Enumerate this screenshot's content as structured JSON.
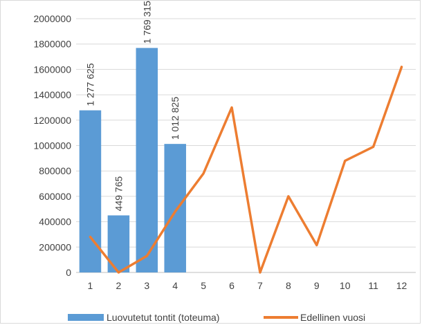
{
  "chart_data": {
    "type": "bar",
    "categories": [
      "1",
      "2",
      "3",
      "4",
      "5",
      "6",
      "7",
      "8",
      "9",
      "10",
      "11",
      "12"
    ],
    "series": [
      {
        "name": "Luovutetut tontit (toteuma)",
        "type": "bar",
        "color": "#5b9bd5",
        "values": [
          1277625,
          449765,
          1769315,
          1012825,
          null,
          null,
          null,
          null,
          null,
          null,
          null,
          null
        ],
        "data_labels": [
          "1 277 625",
          "449 765",
          "1 769 315",
          "1 012 825"
        ]
      },
      {
        "name": "Edellinen vuosi",
        "type": "line",
        "color": "#ed7d31",
        "values": [
          280000,
          0,
          130000,
          480000,
          780000,
          1300000,
          0,
          600000,
          215000,
          880000,
          990000,
          1620000
        ]
      }
    ],
    "y_ticks": [
      "0",
      "200000",
      "400000",
      "600000",
      "800000",
      "1000000",
      "1200000",
      "1400000",
      "1600000",
      "1800000",
      "2000000"
    ],
    "ylim": [
      0,
      2000000
    ],
    "grid": true,
    "legend_position": "bottom",
    "title": "",
    "xlabel": "",
    "ylabel": ""
  }
}
